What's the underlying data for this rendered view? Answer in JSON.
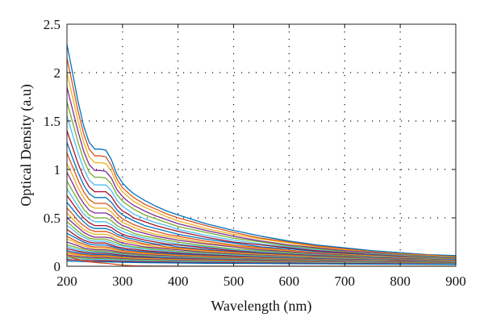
{
  "chart_data": {
    "type": "line",
    "title": "",
    "xlabel": "Wavelength (nm)",
    "ylabel": "Optical Density (a.u)",
    "xlim": [
      200,
      900
    ],
    "ylim": [
      0,
      2.5
    ],
    "x_ticks": [
      {
        "value": 200,
        "label": "200"
      },
      {
        "value": 300,
        "label": "300"
      },
      {
        "value": 400,
        "label": "400"
      },
      {
        "value": 500,
        "label": "500"
      },
      {
        "value": 600,
        "label": "600"
      },
      {
        "value": 700,
        "label": "700"
      },
      {
        "value": 800,
        "label": "800"
      },
      {
        "value": 900,
        "label": "900"
      }
    ],
    "y_ticks": [
      {
        "value": 0,
        "label": "0"
      },
      {
        "value": 0.5,
        "label": "0.5"
      },
      {
        "value": 1,
        "label": "1"
      },
      {
        "value": 1.5,
        "label": "1.5"
      },
      {
        "value": 2,
        "label": "2"
      },
      {
        "value": 2.5,
        "label": "2.5"
      }
    ],
    "grid": true,
    "grid_style": "dotted",
    "legend": "none",
    "color_cycle": [
      "#0072BD",
      "#D95319",
      "#EDB120",
      "#7E2F8E",
      "#77AC30",
      "#4DBEEE",
      "#A2142F"
    ],
    "x": [
      200,
      210,
      220,
      230,
      240,
      250,
      260,
      270,
      280,
      290,
      300,
      310,
      320,
      340,
      360,
      380,
      400,
      450,
      500,
      550,
      600,
      650,
      700,
      750,
      800,
      850,
      900
    ],
    "series": [
      {
        "values": [
          2.29,
          2.0,
          1.7,
          1.45,
          1.28,
          1.21,
          1.21,
          1.2,
          1.1,
          0.95,
          0.86,
          0.8,
          0.75,
          0.68,
          0.62,
          0.57,
          0.53,
          0.44,
          0.37,
          0.31,
          0.26,
          0.22,
          0.19,
          0.16,
          0.14,
          0.12,
          0.11
        ]
      },
      {
        "values": [
          2.15,
          1.88,
          1.6,
          1.37,
          1.21,
          1.14,
          1.14,
          1.13,
          1.04,
          0.9,
          0.81,
          0.76,
          0.71,
          0.64,
          0.59,
          0.54,
          0.5,
          0.42,
          0.35,
          0.29,
          0.25,
          0.21,
          0.18,
          0.15,
          0.13,
          0.115,
          0.1
        ]
      },
      {
        "values": [
          2.0,
          1.75,
          1.5,
          1.28,
          1.13,
          1.07,
          1.07,
          1.06,
          0.98,
          0.85,
          0.77,
          0.72,
          0.67,
          0.61,
          0.56,
          0.51,
          0.47,
          0.39,
          0.33,
          0.28,
          0.24,
          0.2,
          0.17,
          0.145,
          0.125,
          0.11,
          0.095
        ]
      },
      {
        "values": [
          1.85,
          1.62,
          1.39,
          1.19,
          1.05,
          0.99,
          0.99,
          0.98,
          0.91,
          0.79,
          0.72,
          0.67,
          0.63,
          0.57,
          0.52,
          0.48,
          0.44,
          0.37,
          0.31,
          0.26,
          0.22,
          0.19,
          0.16,
          0.14,
          0.12,
          0.105,
          0.09
        ]
      },
      {
        "values": [
          1.7,
          1.49,
          1.28,
          1.1,
          0.97,
          0.92,
          0.92,
          0.91,
          0.85,
          0.74,
          0.67,
          0.63,
          0.59,
          0.53,
          0.49,
          0.45,
          0.41,
          0.35,
          0.29,
          0.25,
          0.21,
          0.18,
          0.15,
          0.13,
          0.115,
          0.1,
          0.088
        ]
      },
      {
        "values": [
          1.55,
          1.36,
          1.17,
          1.01,
          0.89,
          0.84,
          0.84,
          0.84,
          0.78,
          0.68,
          0.62,
          0.58,
          0.54,
          0.49,
          0.45,
          0.42,
          0.38,
          0.32,
          0.27,
          0.23,
          0.2,
          0.17,
          0.145,
          0.125,
          0.11,
          0.095,
          0.085
        ]
      },
      {
        "values": [
          1.4,
          1.23,
          1.06,
          0.92,
          0.82,
          0.77,
          0.77,
          0.77,
          0.72,
          0.63,
          0.57,
          0.54,
          0.5,
          0.46,
          0.42,
          0.39,
          0.36,
          0.3,
          0.25,
          0.22,
          0.19,
          0.16,
          0.14,
          0.12,
          0.105,
          0.092,
          0.082
        ]
      },
      {
        "values": [
          1.28,
          1.12,
          0.97,
          0.84,
          0.75,
          0.71,
          0.71,
          0.71,
          0.66,
          0.58,
          0.53,
          0.5,
          0.47,
          0.42,
          0.39,
          0.36,
          0.33,
          0.28,
          0.24,
          0.2,
          0.18,
          0.15,
          0.13,
          0.115,
          0.1,
          0.09,
          0.08
        ]
      },
      {
        "values": [
          1.17,
          1.03,
          0.89,
          0.77,
          0.69,
          0.65,
          0.65,
          0.65,
          0.61,
          0.54,
          0.49,
          0.46,
          0.43,
          0.39,
          0.36,
          0.33,
          0.31,
          0.26,
          0.22,
          0.19,
          0.165,
          0.14,
          0.125,
          0.11,
          0.097,
          0.087,
          0.078
        ]
      },
      {
        "values": [
          1.06,
          0.94,
          0.81,
          0.71,
          0.63,
          0.6,
          0.6,
          0.6,
          0.56,
          0.5,
          0.45,
          0.43,
          0.4,
          0.36,
          0.33,
          0.31,
          0.29,
          0.24,
          0.21,
          0.18,
          0.155,
          0.135,
          0.12,
          0.105,
          0.093,
          0.083,
          0.075
        ]
      },
      {
        "values": [
          0.97,
          0.86,
          0.74,
          0.65,
          0.58,
          0.55,
          0.55,
          0.55,
          0.52,
          0.46,
          0.42,
          0.4,
          0.37,
          0.34,
          0.31,
          0.29,
          0.27,
          0.23,
          0.2,
          0.17,
          0.15,
          0.13,
          0.115,
          0.1,
          0.09,
          0.08,
          0.072
        ]
      },
      {
        "values": [
          0.88,
          0.78,
          0.68,
          0.59,
          0.53,
          0.5,
          0.5,
          0.5,
          0.47,
          0.42,
          0.39,
          0.37,
          0.34,
          0.31,
          0.29,
          0.27,
          0.25,
          0.21,
          0.18,
          0.16,
          0.14,
          0.12,
          0.11,
          0.097,
          0.087,
          0.078,
          0.07
        ]
      },
      {
        "values": [
          0.8,
          0.71,
          0.62,
          0.54,
          0.49,
          0.46,
          0.46,
          0.46,
          0.43,
          0.39,
          0.36,
          0.34,
          0.32,
          0.29,
          0.27,
          0.25,
          0.23,
          0.2,
          0.17,
          0.15,
          0.13,
          0.115,
          0.1,
          0.093,
          0.083,
          0.075,
          0.068
        ]
      },
      {
        "values": [
          0.73,
          0.65,
          0.57,
          0.5,
          0.45,
          0.42,
          0.42,
          0.42,
          0.4,
          0.36,
          0.33,
          0.31,
          0.3,
          0.27,
          0.25,
          0.23,
          0.22,
          0.19,
          0.16,
          0.14,
          0.125,
          0.11,
          0.098,
          0.088,
          0.08,
          0.072,
          0.065
        ]
      },
      {
        "values": [
          0.66,
          0.59,
          0.52,
          0.46,
          0.41,
          0.39,
          0.39,
          0.39,
          0.37,
          0.33,
          0.31,
          0.29,
          0.28,
          0.25,
          0.23,
          0.22,
          0.2,
          0.175,
          0.15,
          0.135,
          0.12,
          0.105,
          0.094,
          0.085,
          0.077,
          0.07,
          0.063
        ]
      },
      {
        "values": [
          0.6,
          0.54,
          0.47,
          0.42,
          0.38,
          0.36,
          0.36,
          0.36,
          0.34,
          0.31,
          0.29,
          0.27,
          0.26,
          0.23,
          0.22,
          0.2,
          0.19,
          0.165,
          0.145,
          0.128,
          0.114,
          0.1,
          0.09,
          0.082,
          0.074,
          0.067,
          0.06
        ]
      },
      {
        "values": [
          0.55,
          0.49,
          0.43,
          0.38,
          0.35,
          0.33,
          0.33,
          0.33,
          0.31,
          0.28,
          0.26,
          0.25,
          0.24,
          0.22,
          0.2,
          0.19,
          0.18,
          0.155,
          0.137,
          0.12,
          0.108,
          0.096,
          0.087,
          0.078,
          0.071,
          0.065,
          0.058
        ]
      },
      {
        "values": [
          0.5,
          0.45,
          0.4,
          0.35,
          0.32,
          0.3,
          0.3,
          0.3,
          0.29,
          0.26,
          0.24,
          0.23,
          0.22,
          0.2,
          0.19,
          0.18,
          0.17,
          0.145,
          0.128,
          0.113,
          0.102,
          0.092,
          0.083,
          0.075,
          0.068,
          0.062,
          0.056
        ]
      },
      {
        "values": [
          0.46,
          0.41,
          0.36,
          0.32,
          0.29,
          0.28,
          0.28,
          0.28,
          0.26,
          0.24,
          0.22,
          0.21,
          0.2,
          0.19,
          0.175,
          0.165,
          0.155,
          0.137,
          0.12,
          0.107,
          0.097,
          0.088,
          0.08,
          0.072,
          0.066,
          0.06,
          0.054
        ]
      },
      {
        "values": [
          0.42,
          0.38,
          0.33,
          0.3,
          0.27,
          0.26,
          0.26,
          0.26,
          0.24,
          0.22,
          0.21,
          0.2,
          0.19,
          0.175,
          0.165,
          0.155,
          0.145,
          0.128,
          0.113,
          0.101,
          0.092,
          0.083,
          0.076,
          0.069,
          0.063,
          0.058,
          0.052
        ]
      },
      {
        "values": [
          0.38,
          0.34,
          0.3,
          0.27,
          0.25,
          0.24,
          0.24,
          0.24,
          0.22,
          0.2,
          0.19,
          0.18,
          0.175,
          0.162,
          0.152,
          0.143,
          0.135,
          0.12,
          0.106,
          0.095,
          0.087,
          0.079,
          0.072,
          0.066,
          0.061,
          0.056,
          0.05
        ]
      },
      {
        "values": [
          0.34,
          0.31,
          0.28,
          0.25,
          0.23,
          0.22,
          0.22,
          0.22,
          0.205,
          0.19,
          0.175,
          0.168,
          0.162,
          0.15,
          0.141,
          0.133,
          0.126,
          0.112,
          0.1,
          0.09,
          0.082,
          0.075,
          0.069,
          0.063,
          0.058,
          0.053,
          0.048
        ]
      },
      {
        "values": [
          0.31,
          0.28,
          0.25,
          0.23,
          0.21,
          0.2,
          0.2,
          0.2,
          0.19,
          0.175,
          0.162,
          0.155,
          0.15,
          0.14,
          0.131,
          0.124,
          0.117,
          0.105,
          0.094,
          0.085,
          0.078,
          0.071,
          0.065,
          0.06,
          0.055,
          0.05,
          0.046
        ]
      },
      {
        "values": [
          0.28,
          0.26,
          0.23,
          0.21,
          0.195,
          0.185,
          0.185,
          0.185,
          0.175,
          0.162,
          0.15,
          0.144,
          0.139,
          0.13,
          0.122,
          0.115,
          0.109,
          0.098,
          0.088,
          0.08,
          0.073,
          0.067,
          0.062,
          0.057,
          0.052,
          0.048,
          0.044
        ]
      },
      {
        "values": [
          0.25,
          0.23,
          0.21,
          0.19,
          0.178,
          0.17,
          0.17,
          0.17,
          0.162,
          0.15,
          0.14,
          0.134,
          0.129,
          0.121,
          0.114,
          0.108,
          0.102,
          0.092,
          0.083,
          0.075,
          0.069,
          0.064,
          0.059,
          0.054,
          0.05,
          0.046,
          0.042
        ]
      },
      {
        "values": [
          0.22,
          0.205,
          0.19,
          0.175,
          0.163,
          0.156,
          0.156,
          0.156,
          0.149,
          0.139,
          0.13,
          0.125,
          0.12,
          0.113,
          0.106,
          0.1,
          0.095,
          0.086,
          0.078,
          0.071,
          0.065,
          0.06,
          0.055,
          0.051,
          0.047,
          0.044,
          0.04
        ]
      },
      {
        "values": [
          0.2,
          0.185,
          0.172,
          0.16,
          0.15,
          0.144,
          0.144,
          0.144,
          0.138,
          0.129,
          0.121,
          0.116,
          0.112,
          0.105,
          0.099,
          0.094,
          0.089,
          0.08,
          0.073,
          0.067,
          0.061,
          0.056,
          0.052,
          0.048,
          0.045,
          0.042,
          0.038
        ]
      },
      {
        "values": [
          0.18,
          0.168,
          0.156,
          0.146,
          0.138,
          0.133,
          0.133,
          0.133,
          0.128,
          0.12,
          0.113,
          0.108,
          0.104,
          0.098,
          0.092,
          0.087,
          0.083,
          0.075,
          0.068,
          0.063,
          0.058,
          0.053,
          0.049,
          0.046,
          0.043,
          0.04,
          0.036
        ]
      },
      {
        "values": [
          0.16,
          0.15,
          0.14,
          0.132,
          0.125,
          0.121,
          0.121,
          0.121,
          0.116,
          0.109,
          0.103,
          0.099,
          0.096,
          0.09,
          0.085,
          0.081,
          0.077,
          0.07,
          0.064,
          0.059,
          0.054,
          0.05,
          0.047,
          0.044,
          0.041,
          0.038,
          0.035
        ]
      },
      {
        "values": [
          0.145,
          0.135,
          0.127,
          0.12,
          0.114,
          0.11,
          0.11,
          0.11,
          0.106,
          0.1,
          0.095,
          0.091,
          0.088,
          0.083,
          0.079,
          0.075,
          0.072,
          0.065,
          0.06,
          0.055,
          0.051,
          0.047,
          0.044,
          0.041,
          0.038,
          0.036,
          0.033
        ]
      },
      {
        "values": [
          0.13,
          0.122,
          0.115,
          0.109,
          0.104,
          0.1,
          0.1,
          0.1,
          0.097,
          0.092,
          0.087,
          0.084,
          0.081,
          0.077,
          0.073,
          0.07,
          0.067,
          0.061,
          0.056,
          0.052,
          0.048,
          0.045,
          0.042,
          0.039,
          0.036,
          0.034,
          0.031
        ]
      },
      {
        "values": [
          0.115,
          0.108,
          0.102,
          0.097,
          0.093,
          0.09,
          0.09,
          0.09,
          0.087,
          0.083,
          0.079,
          0.076,
          0.074,
          0.07,
          0.067,
          0.064,
          0.061,
          0.056,
          0.052,
          0.048,
          0.045,
          0.042,
          0.039,
          0.036,
          0.034,
          0.032,
          0.03
        ]
      },
      {
        "values": [
          0.1,
          0.094,
          0.089,
          0.085,
          0.081,
          0.079,
          0.079,
          0.079,
          0.077,
          0.073,
          0.07,
          0.068,
          0.066,
          0.063,
          0.06,
          0.058,
          0.055,
          0.051,
          0.047,
          0.044,
          0.041,
          0.038,
          0.036,
          0.034,
          0.032,
          0.03,
          0.028
        ]
      },
      {
        "values": [
          0.085,
          0.08,
          0.076,
          0.073,
          0.07,
          0.068,
          0.068,
          0.068,
          0.066,
          0.063,
          0.061,
          0.059,
          0.057,
          0.055,
          0.052,
          0.05,
          0.048,
          0.045,
          0.042,
          0.039,
          0.037,
          0.034,
          0.032,
          0.03,
          0.028,
          0.027,
          0.025
        ]
      },
      {
        "values": [
          0.07,
          0.066,
          0.063,
          0.06,
          0.058,
          0.057,
          0.057,
          0.057,
          0.055,
          0.053,
          0.051,
          0.05,
          0.048,
          0.046,
          0.044,
          0.043,
          0.041,
          0.038,
          0.036,
          0.034,
          0.032,
          0.03,
          0.028,
          0.027,
          0.025,
          0.024,
          0.022
        ]
      },
      {
        "values": [
          0.055,
          0.052,
          0.05,
          0.048,
          0.046,
          0.045,
          0.045,
          0.045,
          0.044,
          0.042,
          0.041,
          0.04,
          0.039,
          0.037,
          0.036,
          0.035,
          0.033,
          0.031,
          0.029,
          0.028,
          0.026,
          0.025,
          0.023,
          0.022,
          0.021,
          0.02,
          0.019
        ]
      },
      {
        "values": [
          0.12,
          0.09,
          0.07,
          0.055,
          0.045,
          0.04,
          0.035,
          0.03,
          0.025,
          0.018,
          0.012,
          0.008,
          0.005,
          0.003,
          0.002,
          0.002,
          0.001,
          0.001,
          0.001,
          0.001,
          0.001,
          0.001,
          0.001,
          0.001,
          0.001,
          0.001,
          0.001
        ]
      }
    ]
  }
}
